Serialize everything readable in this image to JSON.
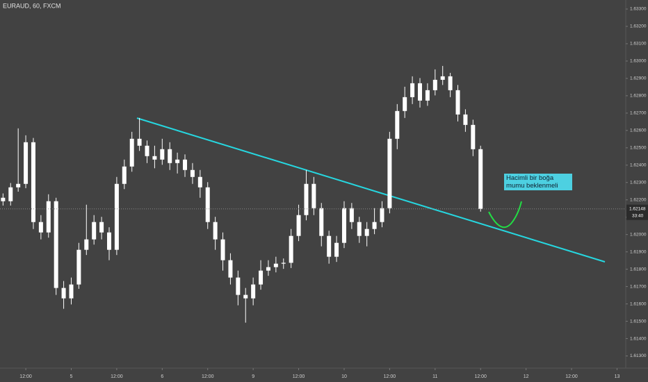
{
  "chart_data": {
    "type": "candlestick",
    "title": "EURAUD, 60, FXCM",
    "x": [
      -6,
      -4,
      -2,
      0,
      2,
      4,
      6,
      8,
      10,
      12,
      14,
      16,
      18,
      20,
      22,
      24,
      26,
      28,
      30,
      32,
      34,
      36,
      38,
      40,
      42,
      44,
      46,
      48,
      50,
      52,
      54,
      56,
      58,
      60,
      62,
      64,
      66,
      68,
      70,
      72,
      74,
      76,
      78,
      80,
      82,
      84,
      86,
      88,
      90,
      92,
      94,
      96,
      98,
      100,
      102,
      104,
      106,
      108,
      110,
      112,
      114,
      116,
      118,
      120
    ],
    "ohlc": [
      [
        1.62212,
        1.62237,
        1.62167,
        1.62192
      ],
      [
        1.62192,
        1.62297,
        1.62167,
        1.62272
      ],
      [
        1.62272,
        1.62612,
        1.62247,
        1.62292
      ],
      [
        1.62292,
        1.62572,
        1.62267,
        1.62532
      ],
      [
        1.62532,
        1.62557,
        1.62032,
        1.62072
      ],
      [
        1.62072,
        1.62112,
        1.61972,
        1.62012
      ],
      [
        1.62012,
        1.62232,
        1.61982,
        1.62192
      ],
      [
        1.62192,
        1.62212,
        1.61652,
        1.61692
      ],
      [
        1.61692,
        1.61732,
        1.61572,
        1.61632
      ],
      [
        1.61632,
        1.61752,
        1.61597,
        1.61712
      ],
      [
        1.61712,
        1.61952,
        1.61687,
        1.61912
      ],
      [
        1.61912,
        1.62172,
        1.61882,
        1.61972
      ],
      [
        1.61972,
        1.62112,
        1.61942,
        1.62072
      ],
      [
        1.62072,
        1.62102,
        1.61972,
        1.62012
      ],
      [
        1.62012,
        1.62042,
        1.61852,
        1.61912
      ],
      [
        1.61912,
        1.62332,
        1.61882,
        1.62292
      ],
      [
        1.62292,
        1.62432,
        1.62262,
        1.62392
      ],
      [
        1.62392,
        1.62592,
        1.62362,
        1.62552
      ],
      [
        1.62552,
        1.62672,
        1.62482,
        1.62512
      ],
      [
        1.62512,
        1.62542,
        1.62412,
        1.62452
      ],
      [
        1.62452,
        1.62512,
        1.62382,
        1.62432
      ],
      [
        1.62432,
        1.62552,
        1.62402,
        1.62492
      ],
      [
        1.62492,
        1.62532,
        1.62372,
        1.62412
      ],
      [
        1.62412,
        1.62472,
        1.62352,
        1.62432
      ],
      [
        1.62432,
        1.62462,
        1.62332,
        1.62372
      ],
      [
        1.62372,
        1.62412,
        1.62292,
        1.62332
      ],
      [
        1.62332,
        1.62372,
        1.62212,
        1.62272
      ],
      [
        1.62272,
        1.62302,
        1.62032,
        1.62072
      ],
      [
        1.62072,
        1.62102,
        1.61912,
        1.61972
      ],
      [
        1.61972,
        1.62012,
        1.61792,
        1.61852
      ],
      [
        1.61852,
        1.61892,
        1.61712,
        1.61752
      ],
      [
        1.61752,
        1.61792,
        1.61592,
        1.61652
      ],
      [
        1.61652,
        1.61692,
        1.61492,
        1.61632
      ],
      [
        1.61632,
        1.61752,
        1.61592,
        1.61712
      ],
      [
        1.61712,
        1.61852,
        1.61682,
        1.61792
      ],
      [
        1.61792,
        1.61852,
        1.61762,
        1.61812
      ],
      [
        1.61812,
        1.61872,
        1.61782,
        1.61832
      ],
      [
        1.61832,
        1.61862,
        1.61802,
        1.61837
      ],
      [
        1.61837,
        1.62032,
        1.61807,
        1.61992
      ],
      [
        1.61992,
        1.62172,
        1.61962,
        1.62112
      ],
      [
        1.62112,
        1.62372,
        1.62082,
        1.62292
      ],
      [
        1.62292,
        1.62332,
        1.62112,
        1.62152
      ],
      [
        1.62152,
        1.62182,
        1.61932,
        1.61992
      ],
      [
        1.61992,
        1.62022,
        1.61832,
        1.61872
      ],
      [
        1.61872,
        1.61992,
        1.61842,
        1.61952
      ],
      [
        1.61952,
        1.62192,
        1.61922,
        1.62152
      ],
      [
        1.62152,
        1.62182,
        1.62032,
        1.62072
      ],
      [
        1.62072,
        1.62102,
        1.61952,
        1.61992
      ],
      [
        1.61992,
        1.62072,
        1.61932,
        1.62032
      ],
      [
        1.62032,
        1.62152,
        1.62002,
        1.62072
      ],
      [
        1.62072,
        1.62192,
        1.62042,
        1.62152
      ],
      [
        1.62152,
        1.62592,
        1.62122,
        1.62552
      ],
      [
        1.62552,
        1.62752,
        1.62492,
        1.62712
      ],
      [
        1.62712,
        1.62852,
        1.62672,
        1.62792
      ],
      [
        1.62792,
        1.62912,
        1.62752,
        1.62872
      ],
      [
        1.62872,
        1.62902,
        1.62732,
        1.62772
      ],
      [
        1.62772,
        1.62872,
        1.62742,
        1.62832
      ],
      [
        1.62832,
        1.62952,
        1.62802,
        1.62892
      ],
      [
        1.62892,
        1.62972,
        1.62862,
        1.62912
      ],
      [
        1.62912,
        1.62932,
        1.62792,
        1.62832
      ],
      [
        1.62832,
        1.62862,
        1.62652,
        1.62692
      ],
      [
        1.62692,
        1.62722,
        1.62592,
        1.62632
      ],
      [
        1.62632,
        1.62662,
        1.62452,
        1.62492
      ],
      [
        1.62492,
        1.62512,
        1.62132,
        1.62148
      ]
    ],
    "color": "#ffffff",
    "xlim": [
      -6.8,
      158.3
    ],
    "xticks": [
      {
        "value": 0,
        "label": "12:00"
      },
      5,
      {
        "value": 24,
        "label": "12:00"
      },
      6,
      {
        "value": 48,
        "label": "12:00"
      },
      9,
      {
        "value": 72,
        "label": "12:00"
      },
      10,
      {
        "value": 96,
        "label": "12:00"
      },
      11,
      {
        "value": 120,
        "label": "12:00"
      },
      12,
      {
        "value": 144,
        "label": "12:00"
      },
      13
    ],
    "xtick_positions": [
      0,
      12,
      24,
      36,
      48,
      60,
      72,
      84,
      96,
      108,
      120,
      132,
      144,
      156
    ],
    "ylim": [
      1.6123,
      1.63352
    ],
    "yticks": [
      {
        "value": 1.613,
        "label": "1.61300"
      },
      {
        "value": 1.614,
        "label": "1.61400"
      },
      {
        "value": 1.615,
        "label": "1.61500"
      },
      {
        "value": 1.616,
        "label": "1.61600"
      },
      {
        "value": 1.617,
        "label": "1.61700"
      },
      {
        "value": 1.618,
        "label": "1.61800"
      },
      {
        "value": 1.619,
        "label": "1.61900"
      },
      {
        "value": 1.62,
        "label": "1.62000"
      },
      {
        "value": 1.621,
        "label": "1.62100"
      },
      {
        "value": 1.622,
        "label": "1.62200"
      },
      {
        "value": 1.623,
        "label": "1.62300"
      },
      {
        "value": 1.624,
        "label": "1.62400"
      },
      {
        "value": 1.625,
        "label": "1.62500"
      },
      {
        "value": 1.626,
        "label": "1.62600"
      },
      {
        "value": 1.627,
        "label": "1.62700"
      },
      {
        "value": 1.628,
        "label": "1.62800"
      },
      {
        "value": 1.629,
        "label": "1.62900"
      },
      {
        "value": 1.63,
        "label": "1.63000"
      },
      {
        "value": 1.631,
        "label": "1.63100"
      },
      {
        "value": 1.632,
        "label": "1.63200"
      },
      {
        "value": 1.633,
        "label": "1.63300"
      }
    ],
    "last_price": 1.62148,
    "countdown": "33:40",
    "annotation": "Hacimli bir boğa mumu beklenmeli",
    "grid": false
  }
}
